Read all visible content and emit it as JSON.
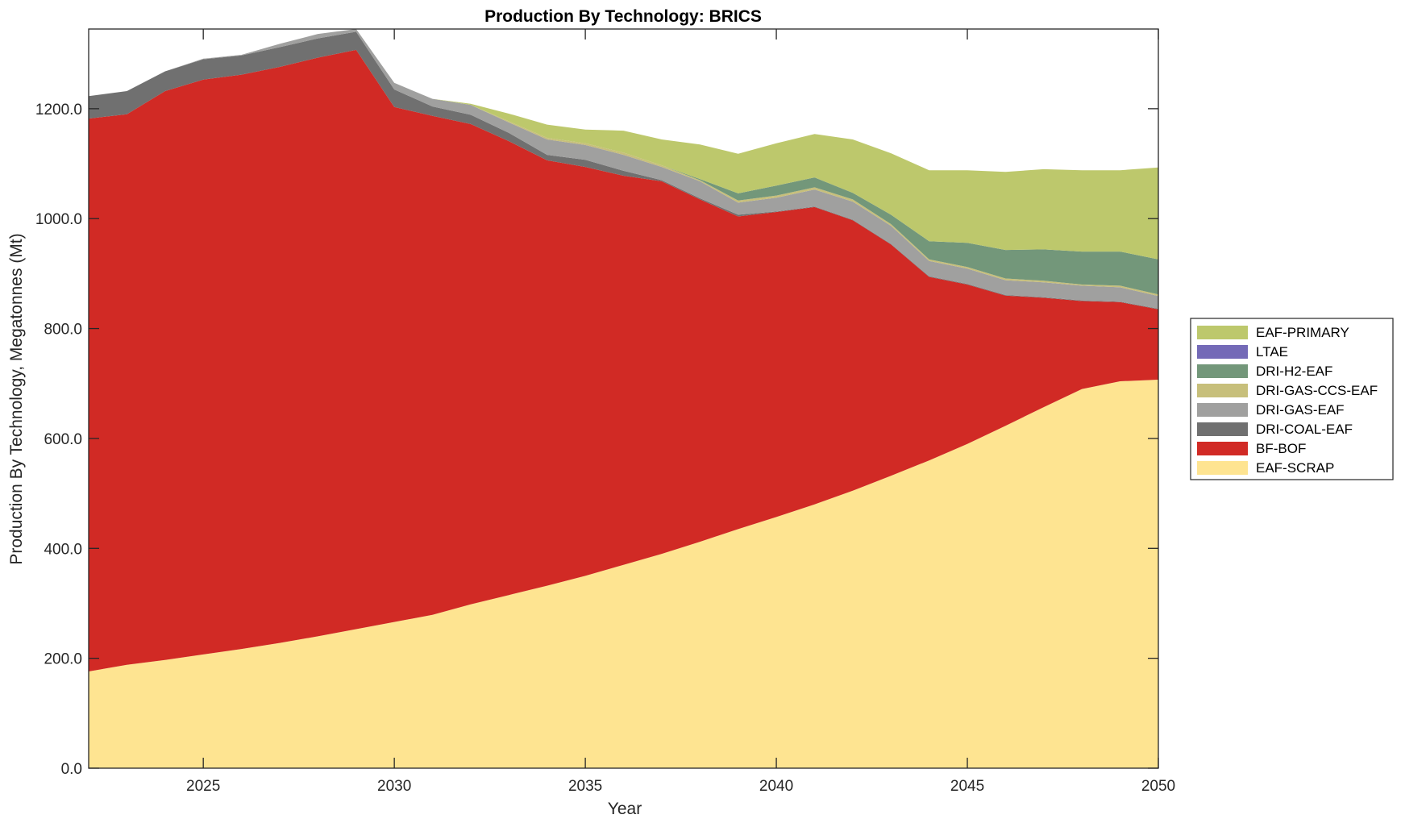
{
  "chart_data": {
    "type": "area",
    "stacked": true,
    "title": "Production By Technology: BRICS",
    "xlabel": "Year",
    "ylabel": "Production By Technology, Megatonnes (Mt)",
    "xlim": [
      2022,
      2050
    ],
    "ylim": [
      0,
      1345
    ],
    "x_ticks": [
      2025,
      2030,
      2035,
      2040,
      2045,
      2050
    ],
    "x_tick_labels": [
      "2025",
      "2030",
      "2035",
      "2040",
      "2045",
      "2050"
    ],
    "y_ticks": [
      0,
      200,
      400,
      600,
      800,
      1000,
      1200
    ],
    "y_tick_labels": [
      "0.0",
      "200.0",
      "400.0",
      "600.0",
      "800.0",
      "1000.0",
      "1200.0"
    ],
    "grid": false,
    "legend_position": "right",
    "x": [
      2022,
      2023,
      2024,
      2025,
      2026,
      2027,
      2028,
      2029,
      2030,
      2031,
      2032,
      2033,
      2034,
      2035,
      2036,
      2037,
      2038,
      2039,
      2040,
      2041,
      2042,
      2043,
      2044,
      2045,
      2046,
      2047,
      2048,
      2049,
      2050
    ],
    "series": [
      {
        "name": "EAF-SCRAP",
        "color": "#fee491",
        "values": [
          176,
          188,
          197,
          207,
          217,
          228,
          240,
          253,
          266,
          279,
          298,
          315,
          332,
          350,
          370,
          390,
          412,
          435,
          457,
          480,
          505,
          532,
          560,
          590,
          623,
          657,
          690,
          704,
          707
        ]
      },
      {
        "name": "BF-BOF",
        "color": "#d12a25",
        "values": [
          1006,
          1002,
          1035,
          1046,
          1045,
          1048,
          1053,
          1054,
          937,
          908,
          874,
          826,
          774,
          744,
          708,
          678,
          623,
          569,
          555,
          541,
          492,
          421,
          334,
          290,
          237,
          199,
          160,
          144,
          128
        ]
      },
      {
        "name": "DRI-COAL-EAF",
        "color": "#707070",
        "values": [
          41,
          42,
          36,
          37,
          35,
          36,
          35,
          33,
          32,
          17,
          17,
          15,
          10,
          13,
          9,
          2,
          2,
          3,
          1,
          1,
          1,
          1,
          1,
          1,
          1,
          1,
          1,
          1,
          1
        ]
      },
      {
        "name": "DRI-GAS-EAF",
        "color": "#a0a09f",
        "values": [
          0,
          0,
          0,
          1,
          1,
          6,
          8,
          5,
          12,
          14,
          18,
          19,
          28,
          27,
          29,
          24,
          31,
          22,
          25,
          31,
          33,
          33,
          28,
          28,
          27,
          27,
          27,
          26,
          23
        ]
      },
      {
        "name": "DRI-GAS-CCS-EAF",
        "color": "#c7bf7b",
        "values": [
          0,
          0,
          0,
          0,
          0,
          0,
          0,
          0,
          0,
          0,
          0,
          2,
          3,
          3,
          4,
          3,
          2,
          4,
          4,
          4,
          4,
          3,
          3,
          3,
          3,
          3,
          2,
          3,
          3
        ]
      },
      {
        "name": "DRI-H2-EAF",
        "color": "#73977a",
        "values": [
          0,
          0,
          0,
          0,
          0,
          0,
          0,
          0,
          0,
          0,
          0,
          0,
          0,
          0,
          0,
          0,
          2,
          13,
          18,
          18,
          12,
          17,
          33,
          44,
          52,
          57,
          60,
          62,
          64
        ]
      },
      {
        "name": "LTAE",
        "color": "#746ab7",
        "values": [
          0,
          0,
          0,
          0,
          0,
          0,
          0,
          0,
          0,
          0,
          0,
          0,
          0,
          0,
          0,
          0,
          0,
          0,
          0,
          0,
          0,
          0,
          0,
          0,
          0,
          0,
          0,
          0,
          0
        ]
      },
      {
        "name": "EAF-PRIMARY",
        "color": "#bdc86c",
        "values": [
          0,
          0,
          0,
          0,
          0,
          0,
          0,
          0,
          0,
          0,
          2,
          14,
          24,
          25,
          40,
          47,
          63,
          72,
          77,
          79,
          97,
          112,
          129,
          132,
          142,
          146,
          148,
          148,
          167
        ]
      }
    ],
    "legend_order": [
      "EAF-PRIMARY",
      "LTAE",
      "DRI-H2-EAF",
      "DRI-GAS-CCS-EAF",
      "DRI-GAS-EAF",
      "DRI-COAL-EAF",
      "BF-BOF",
      "EAF-SCRAP"
    ]
  }
}
